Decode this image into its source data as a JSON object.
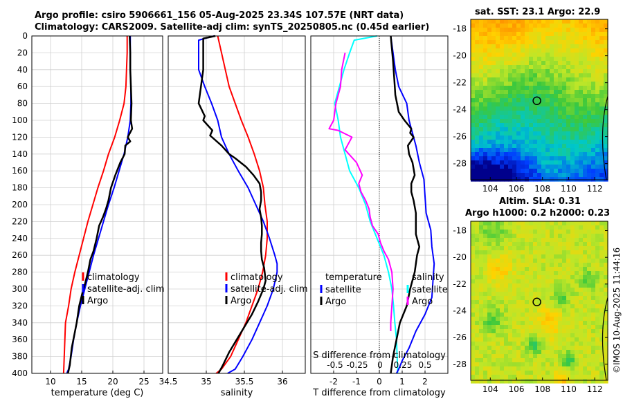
{
  "titles": {
    "line1": "Argo profile: csiro 5906661_156 05-Aug-2025 23.34S 107.57E (NRT data)",
    "line2": "Climatology: CARS2009. Satellite-adj clim: synTS_20250805.nc (0.45d earlier)",
    "sst": "sat. SST: 23.1 Argo: 22.9",
    "sla1": "Altim. SLA: 0.31",
    "sla2": "Argo h1000: 0.2 h2000: 0.23"
  },
  "stamp": "©IMOS 10-Aug-2025 11:44:16",
  "colors": {
    "climatology": "#ff0000",
    "satellite": "#0000ff",
    "argo": "#000000",
    "cyan": "#00ffff",
    "magenta": "#ff00ff"
  },
  "chart_data": [
    {
      "type": "line",
      "id": "temperature",
      "xlabel": "temperature (deg C)",
      "ylabel": "",
      "xlim": [
        7,
        28
      ],
      "ylim": [
        0,
        400
      ],
      "xticks": [
        10,
        15,
        20,
        25
      ],
      "xticklabels": [
        "10",
        "15",
        "20",
        "25"
      ],
      "yticks": [
        0,
        20,
        40,
        60,
        80,
        100,
        120,
        140,
        160,
        180,
        200,
        220,
        240,
        260,
        280,
        300,
        320,
        340,
        360,
        380,
        400
      ],
      "yticklabels": [
        "0",
        "20",
        "40",
        "60",
        "80",
        "100",
        "120",
        "140",
        "160",
        "180",
        "200",
        "220",
        "240",
        "260",
        "280",
        "300",
        "320",
        "340",
        "360",
        "380",
        "400"
      ],
      "legend": [
        "climatology",
        "satellite-adj. clim",
        "Argo"
      ],
      "series": [
        {
          "name": "climatology",
          "color": "#ff0000",
          "x": [
            22.3,
            22.3,
            22.2,
            22.1,
            21.8,
            21.1,
            20.3,
            19.3,
            18.5,
            17.6,
            16.8,
            16.0,
            15.3,
            14.6,
            13.9,
            13.3,
            12.9,
            12.4,
            12.1
          ],
          "y": [
            0,
            20,
            40,
            60,
            80,
            100,
            120,
            140,
            160,
            180,
            200,
            220,
            240,
            260,
            280,
            300,
            320,
            340,
            400
          ]
        },
        {
          "name": "satellite-adj. clim",
          "color": "#0000ff",
          "x": [
            22.8,
            22.8,
            22.8,
            22.9,
            22.9,
            22.8,
            22.4,
            21.8,
            21.0,
            20.2,
            19.3,
            18.5,
            17.7,
            16.9,
            16.2,
            15.5,
            14.8,
            14.2,
            13.7,
            13.3,
            12.9,
            12.6
          ],
          "y": [
            0,
            20,
            40,
            60,
            80,
            100,
            120,
            140,
            160,
            180,
            200,
            220,
            240,
            260,
            280,
            300,
            320,
            340,
            360,
            380,
            395,
            400
          ]
        },
        {
          "name": "Argo",
          "color": "#000000",
          "x": [
            22.7,
            22.8,
            22.8,
            22.9,
            23.0,
            22.9,
            23.1,
            22.4,
            22.8,
            22.0,
            21.9,
            21.2,
            20.4,
            19.7,
            19.3,
            18.9,
            18.4,
            17.8,
            17.4,
            16.9,
            16.4,
            16.0,
            15.5,
            15.1,
            14.6,
            14.2,
            13.8,
            13.4,
            13.1,
            12.8
          ],
          "y": [
            0,
            20,
            40,
            60,
            80,
            100,
            110,
            120,
            125,
            130,
            140,
            150,
            165,
            180,
            195,
            205,
            215,
            225,
            240,
            255,
            265,
            280,
            295,
            305,
            320,
            340,
            355,
            370,
            390,
            400
          ]
        }
      ]
    },
    {
      "type": "line",
      "id": "salinity",
      "xlabel": "salinity",
      "xlim": [
        34.5,
        36.3
      ],
      "ylim": [
        0,
        400
      ],
      "xticks": [
        34.5,
        35,
        35.5,
        36
      ],
      "xticklabels": [
        "34.5",
        "35",
        "35.5",
        "36"
      ],
      "legend": [
        "climatology",
        "satellite-adj. clim",
        "Argo"
      ],
      "series": [
        {
          "name": "climatology",
          "color": "#ff0000",
          "x": [
            35.15,
            35.2,
            35.25,
            35.3,
            35.38,
            35.46,
            35.55,
            35.63,
            35.7,
            35.75,
            35.77,
            35.8,
            35.8,
            35.78,
            35.74,
            35.68,
            35.6,
            35.52,
            35.42,
            35.32,
            35.2,
            35.13
          ],
          "y": [
            0,
            20,
            40,
            60,
            80,
            100,
            120,
            140,
            160,
            180,
            200,
            220,
            240,
            260,
            280,
            300,
            320,
            340,
            360,
            380,
            395,
            400
          ]
        },
        {
          "name": "satellite-adj. clim",
          "color": "#0000ff",
          "x": [
            35.1,
            34.9,
            34.9,
            34.98,
            35.07,
            35.15,
            35.2,
            35.3,
            35.42,
            35.55,
            35.65,
            35.75,
            35.83,
            35.9,
            35.93,
            35.93,
            35.88,
            35.8,
            35.7,
            35.6,
            35.48,
            35.38,
            35.28
          ],
          "y": [
            0,
            5,
            40,
            60,
            80,
            100,
            120,
            140,
            160,
            180,
            200,
            220,
            240,
            260,
            270,
            280,
            300,
            320,
            340,
            360,
            380,
            395,
            400
          ]
        },
        {
          "name": "Argo",
          "color": "#000000",
          "x": [
            35.12,
            34.96,
            34.96,
            34.93,
            34.9,
            34.98,
            34.96,
            35.08,
            35.05,
            35.2,
            35.3,
            35.38,
            35.52,
            35.62,
            35.7,
            35.72,
            35.72,
            35.7,
            35.72,
            35.73,
            35.73,
            35.72,
            35.72,
            35.73,
            35.76,
            35.78,
            35.75,
            35.68,
            35.6,
            35.5,
            35.4,
            35.3,
            35.22,
            35.16
          ],
          "y": [
            0,
            3,
            40,
            60,
            80,
            95,
            100,
            112,
            118,
            130,
            140,
            145,
            155,
            165,
            175,
            185,
            195,
            205,
            215,
            225,
            235,
            245,
            255,
            265,
            275,
            290,
            300,
            315,
            330,
            345,
            360,
            375,
            390,
            400
          ]
        }
      ]
    },
    {
      "type": "line",
      "id": "difference",
      "xlabel": "T difference from climatology",
      "x2label": "S difference from climatology",
      "xlim": [
        -3,
        3
      ],
      "ylim": [
        0,
        400
      ],
      "xticks": [
        -2,
        -1,
        0,
        1,
        2
      ],
      "xticklabels": [
        "-2",
        "-1",
        "0",
        "1",
        "2"
      ],
      "x2ticklabels": [
        "-0.5",
        "-0.25",
        "0",
        "0.25",
        "0.5"
      ],
      "legend_left_title": "temperature",
      "legend_left": [
        "satellite",
        "Argo"
      ],
      "legend_right_title": "salinity",
      "legend_right": [
        "satellite",
        "Argo"
      ],
      "series": [
        {
          "name": "T satellite",
          "color": "#00ffff",
          "x": [
            -0.1,
            -1.1,
            -1.3,
            -1.55,
            -1.75,
            -1.95,
            -1.8,
            -1.7,
            -1.5,
            -1.3,
            -0.9,
            -0.6,
            -0.4,
            -0.1,
            0.2,
            0.4,
            0.55,
            0.62,
            0.68,
            0.75,
            0.78,
            0.8,
            0.8
          ],
          "y": [
            0,
            5,
            20,
            40,
            60,
            80,
            100,
            120,
            140,
            160,
            180,
            200,
            220,
            240,
            260,
            280,
            300,
            320,
            340,
            360,
            380,
            395,
            400
          ]
        },
        {
          "name": "T Argo",
          "color": "#ff00ff",
          "x": [
            -1.5,
            -1.65,
            -1.7,
            -1.9,
            -2.0,
            -2.2,
            -1.8,
            -1.2,
            -1.5,
            -1.0,
            -0.75,
            -0.9,
            -0.8,
            -0.6,
            -0.45,
            -0.4,
            -0.3,
            -0.05,
            0.05,
            0.2,
            0.4,
            0.55,
            0.6,
            0.55,
            0.5,
            0.5
          ],
          "y": [
            20,
            40,
            60,
            80,
            100,
            110,
            112,
            120,
            135,
            150,
            165,
            175,
            185,
            195,
            205,
            215,
            225,
            235,
            245,
            255,
            265,
            280,
            300,
            320,
            340,
            350
          ]
        },
        {
          "name": "S satellite",
          "color": "#0000ff",
          "x": [
            0.5,
            0.6,
            0.7,
            0.85,
            1.2,
            1.3,
            1.5,
            1.6,
            1.75,
            1.95,
            2.0,
            2.05,
            2.25,
            2.3,
            2.4,
            2.35,
            2.3,
            2.0,
            1.6,
            1.3,
            1.0,
            0.85,
            0.75
          ],
          "y": [
            0,
            20,
            40,
            60,
            80,
            100,
            120,
            130,
            150,
            170,
            190,
            210,
            230,
            250,
            270,
            290,
            310,
            330,
            350,
            370,
            385,
            395,
            400
          ]
        },
        {
          "name": "S Argo",
          "color": "#000000",
          "x": [
            0.5,
            0.55,
            0.6,
            0.65,
            0.7,
            0.85,
            1.1,
            1.4,
            1.35,
            1.5,
            1.25,
            1.3,
            1.45,
            1.55,
            1.4,
            1.4,
            1.5,
            1.6,
            1.6,
            1.6,
            1.75,
            1.65,
            1.6,
            1.55,
            1.35,
            1.2,
            0.9,
            0.75,
            0.6,
            0.5
          ],
          "y": [
            0,
            15,
            30,
            50,
            70,
            90,
            100,
            110,
            115,
            120,
            130,
            140,
            150,
            165,
            175,
            185,
            195,
            210,
            220,
            235,
            250,
            260,
            270,
            280,
            300,
            320,
            340,
            360,
            380,
            400
          ]
        }
      ]
    },
    {
      "type": "heatmap",
      "id": "sst-map",
      "title": "sat. SST: 23.1 Argo: 22.9",
      "xticks": [
        104,
        106,
        108,
        110,
        112
      ],
      "xticklabels": [
        "104",
        "106",
        "108",
        "110",
        "112"
      ],
      "yticks": [
        -18,
        -20,
        -22,
        -24,
        -26,
        -28
      ],
      "yticklabels": [
        "-18",
        "-20",
        "-22",
        "-24",
        "-26",
        "-28"
      ],
      "xlim": [
        102.5,
        113
      ],
      "ylim": [
        -29.2,
        -17.3
      ],
      "marker": {
        "lon": 107.57,
        "lat": -23.34
      }
    },
    {
      "type": "heatmap",
      "id": "sla-map",
      "title": "Altim. SLA: 0.31 / Argo h1000: 0.2 h2000: 0.23",
      "xticks": [
        104,
        106,
        108,
        110,
        112
      ],
      "xticklabels": [
        "104",
        "106",
        "108",
        "110",
        "112"
      ],
      "yticks": [
        -18,
        -20,
        -22,
        -24,
        -26,
        -28
      ],
      "yticklabels": [
        "-18",
        "-20",
        "-22",
        "-24",
        "-26",
        "-28"
      ],
      "xlim": [
        102.5,
        113
      ],
      "ylim": [
        -29.2,
        -17.3
      ],
      "marker": {
        "lon": 107.57,
        "lat": -23.34
      }
    }
  ]
}
